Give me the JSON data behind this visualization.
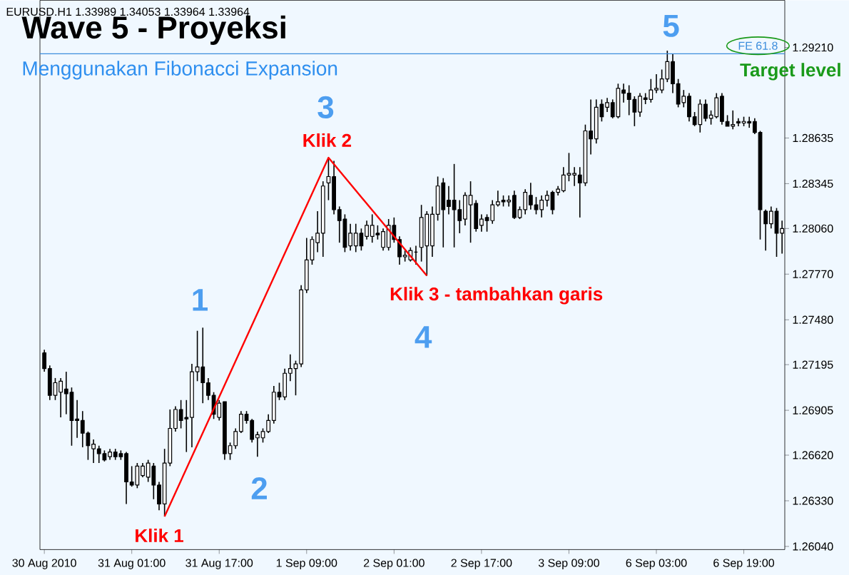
{
  "chart_data": {
    "type": "candlestick",
    "title": "Wave 5 - Proyeksi",
    "subtitle": "Menggunakan Fibonacci Expansion",
    "color": "#000000",
    "categories": [
      "30 Aug 2010",
      null,
      null,
      null,
      null,
      null,
      null,
      null,
      null,
      null,
      null,
      null,
      null,
      null,
      null,
      null,
      "31 Aug 01:00",
      null,
      null,
      null,
      null,
      null,
      null,
      null,
      null,
      null,
      null,
      null,
      null,
      null,
      null,
      null,
      "31 Aug 17:00",
      null,
      null,
      null,
      null,
      null,
      null,
      null,
      null,
      null,
      null,
      null,
      null,
      null,
      null,
      null,
      "1 Sep 09:00",
      null,
      null,
      null,
      null,
      null,
      null,
      null,
      null,
      null,
      null,
      null,
      null,
      null,
      null,
      null,
      "2 Sep 01:00",
      null,
      null,
      null,
      null,
      null,
      null,
      null,
      null,
      null,
      null,
      null,
      null,
      null,
      null,
      null,
      "2 Sep 17:00",
      null,
      null,
      null,
      null,
      null,
      null,
      null,
      null,
      null,
      null,
      null,
      null,
      null,
      null,
      null,
      "3 Sep 09:00",
      null,
      null,
      null,
      null,
      null,
      null,
      null,
      null,
      null,
      null,
      null,
      null,
      null,
      null,
      null,
      "6 Sep 03:00",
      null,
      null,
      null,
      null,
      null,
      null,
      null,
      null,
      null,
      null,
      null,
      null,
      null,
      null,
      null,
      "6 Sep 19:00",
      null,
      null,
      null,
      null,
      null,
      null,
      null
    ],
    "ohlc": [
      [
        1.2727,
        1.2729,
        1.2715,
        1.2717
      ],
      [
        1.2717,
        1.2719,
        1.2697,
        1.27
      ],
      [
        1.27,
        1.2711,
        1.2697,
        1.2708
      ],
      [
        1.2702,
        1.2711,
        1.2686,
        1.2709
      ],
      [
        1.2704,
        1.2715,
        1.2688,
        1.2701
      ],
      [
        1.2702,
        1.2705,
        1.2668,
        1.2684
      ],
      [
        1.2685,
        1.2697,
        1.2673,
        1.2684
      ],
      [
        1.2684,
        1.269,
        1.2667,
        1.2676
      ],
      [
        1.2676,
        1.2677,
        1.2659,
        1.2668
      ],
      [
        1.2666,
        1.2672,
        1.2657,
        1.2669
      ],
      [
        1.2666,
        1.2668,
        1.2657,
        1.2663
      ],
      [
        1.2663,
        1.2665,
        1.2658,
        1.2659
      ],
      [
        1.2661,
        1.2666,
        1.2659,
        1.2664
      ],
      [
        1.2664,
        1.2666,
        1.2659,
        1.2661
      ],
      [
        1.2663,
        1.2665,
        1.2659,
        1.2661
      ],
      [
        1.2663,
        1.2664,
        1.2631,
        1.2645
      ],
      [
        1.2645,
        1.2655,
        1.2642,
        1.2643
      ],
      [
        1.2643,
        1.2657,
        1.2641,
        1.2655
      ],
      [
        1.2649,
        1.2657,
        1.2648,
        1.2655
      ],
      [
        1.2648,
        1.2659,
        1.2645,
        1.2657
      ],
      [
        1.2655,
        1.2657,
        1.2634,
        1.2643
      ],
      [
        1.2643,
        1.2645,
        1.2627,
        1.2631
      ],
      [
        1.2631,
        1.2666,
        1.2623,
        1.2657
      ],
      [
        1.2657,
        1.2691,
        1.2655,
        1.2679
      ],
      [
        1.2679,
        1.2693,
        1.2677,
        1.2691
      ],
      [
        1.2691,
        1.2697,
        1.2679,
        1.2684
      ],
      [
        1.2686,
        1.2697,
        1.2664,
        1.2685
      ],
      [
        1.2686,
        1.272,
        1.2667,
        1.2715
      ],
      [
        1.2715,
        1.2741,
        1.2709,
        1.2718
      ],
      [
        1.2718,
        1.2743,
        1.2695,
        1.2708
      ],
      [
        1.2708,
        1.2711,
        1.2697,
        1.27
      ],
      [
        1.27,
        1.2702,
        1.2685,
        1.2688
      ],
      [
        1.2686,
        1.2697,
        1.2684,
        1.2695
      ],
      [
        1.2696,
        1.2696,
        1.2659,
        1.2663
      ],
      [
        1.2663,
        1.267,
        1.2659,
        1.2668
      ],
      [
        1.2668,
        1.2679,
        1.2666,
        1.2677
      ],
      [
        1.2677,
        1.269,
        1.2676,
        1.2688
      ],
      [
        1.2688,
        1.269,
        1.2682,
        1.2684
      ],
      [
        1.2684,
        1.2685,
        1.267,
        1.2672
      ],
      [
        1.2673,
        1.2677,
        1.2661,
        1.2675
      ],
      [
        1.2673,
        1.2679,
        1.267,
        1.2677
      ],
      [
        1.2677,
        1.2688,
        1.2676,
        1.2684
      ],
      [
        1.2684,
        1.2706,
        1.2682,
        1.2702
      ],
      [
        1.2702,
        1.2708,
        1.2697,
        1.2699
      ],
      [
        1.2699,
        1.2717,
        1.2697,
        1.2714
      ],
      [
        1.2714,
        1.2726,
        1.2709,
        1.2717
      ],
      [
        1.2717,
        1.2722,
        1.27,
        1.272
      ],
      [
        1.272,
        1.277,
        1.2718,
        1.2767
      ],
      [
        1.2767,
        1.28,
        1.2765,
        1.2786
      ],
      [
        1.2786,
        1.2801,
        1.2783,
        1.2799
      ],
      [
        1.2797,
        1.2817,
        1.2791,
        1.2803
      ],
      [
        1.2803,
        1.2836,
        1.2788,
        1.2833
      ],
      [
        1.2835,
        1.2851,
        1.2824,
        1.2839
      ],
      [
        1.2839,
        1.2849,
        1.2815,
        1.2818
      ],
      [
        1.2818,
        1.282,
        1.2797,
        1.2811
      ],
      [
        1.2812,
        1.2815,
        1.2791,
        1.2794
      ],
      [
        1.2795,
        1.2809,
        1.2792,
        1.2803
      ],
      [
        1.2795,
        1.2809,
        1.2791,
        1.2803
      ],
      [
        1.2803,
        1.2806,
        1.2792,
        1.2795
      ],
      [
        1.2801,
        1.2811,
        1.2799,
        1.2808
      ],
      [
        1.2801,
        1.2815,
        1.2797,
        1.2808
      ],
      [
        1.2803,
        1.2808,
        1.2799,
        1.2802
      ],
      [
        1.2794,
        1.2806,
        1.2792,
        1.2804
      ],
      [
        1.2794,
        1.2812,
        1.2792,
        1.2808
      ],
      [
        1.2808,
        1.2813,
        1.2797,
        1.2799
      ],
      [
        1.2799,
        1.2801,
        1.2783,
        1.2788
      ],
      [
        1.2788,
        1.2792,
        1.2785,
        1.2789
      ],
      [
        1.2786,
        1.2794,
        1.2785,
        1.2792
      ],
      [
        1.2791,
        1.2795,
        1.2783,
        1.2791
      ],
      [
        1.2794,
        1.2821,
        1.2785,
        1.2813
      ],
      [
        1.2795,
        1.2817,
        1.2776,
        1.2815
      ],
      [
        1.2795,
        1.282,
        1.2788,
        1.2815
      ],
      [
        1.2815,
        1.2839,
        1.2811,
        1.2833
      ],
      [
        1.2835,
        1.2838,
        1.2794,
        1.2818
      ],
      [
        1.2824,
        1.2833,
        1.2815,
        1.282
      ],
      [
        1.2824,
        1.2847,
        1.2794,
        1.2818
      ],
      [
        1.2818,
        1.2824,
        1.2803,
        1.2811
      ],
      [
        1.2812,
        1.2829,
        1.2808,
        1.2827
      ],
      [
        1.2821,
        1.2836,
        1.2797,
        1.2827
      ],
      [
        1.2822,
        1.2824,
        1.2804,
        1.2806
      ],
      [
        1.2808,
        1.2815,
        1.2804,
        1.2812
      ],
      [
        1.2813,
        1.2815,
        1.2804,
        1.2811
      ],
      [
        1.2811,
        1.2824,
        1.2809,
        1.2821
      ],
      [
        1.2821,
        1.283,
        1.282,
        1.2823
      ],
      [
        1.2824,
        1.2827,
        1.282,
        1.2823
      ],
      [
        1.2823,
        1.2827,
        1.282,
        1.2824
      ],
      [
        1.2827,
        1.283,
        1.2812,
        1.2813
      ],
      [
        1.2813,
        1.282,
        1.2812,
        1.2818
      ],
      [
        1.2818,
        1.2831,
        1.2815,
        1.2829
      ],
      [
        1.2827,
        1.2835,
        1.2818,
        1.2821
      ],
      [
        1.2821,
        1.2826,
        1.2815,
        1.2818
      ],
      [
        1.2818,
        1.2827,
        1.2813,
        1.2824
      ],
      [
        1.2824,
        1.283,
        1.282,
        1.2827
      ],
      [
        1.2829,
        1.283,
        1.2815,
        1.2818
      ],
      [
        1.2829,
        1.2833,
        1.2827,
        1.2831
      ],
      [
        1.283,
        1.2845,
        1.2829,
        1.284
      ],
      [
        1.284,
        1.2854,
        1.2836,
        1.2841
      ],
      [
        1.284,
        1.2845,
        1.2833,
        1.2841
      ],
      [
        1.284,
        1.2845,
        1.2813,
        1.2835
      ],
      [
        1.2835,
        1.2872,
        1.2833,
        1.2868
      ],
      [
        1.2868,
        1.2888,
        1.2853,
        1.2863
      ],
      [
        1.2863,
        1.2888,
        1.286,
        1.2883
      ],
      [
        1.2885,
        1.2888,
        1.2874,
        1.2877
      ],
      [
        1.2883,
        1.2889,
        1.288,
        1.2886
      ],
      [
        1.2886,
        1.2888,
        1.2876,
        1.2877
      ],
      [
        1.2877,
        1.2898,
        1.2876,
        1.2895
      ],
      [
        1.2894,
        1.2898,
        1.2886,
        1.2892
      ],
      [
        1.2892,
        1.2897,
        1.2878,
        1.2888
      ],
      [
        1.2888,
        1.289,
        1.2871,
        1.288
      ],
      [
        1.288,
        1.2892,
        1.2877,
        1.289
      ],
      [
        1.2889,
        1.2892,
        1.2885,
        1.2888
      ],
      [
        1.2888,
        1.2901,
        1.2886,
        1.2894
      ],
      [
        1.2894,
        1.2904,
        1.2892,
        1.2895
      ],
      [
        1.2894,
        1.2907,
        1.2892,
        1.2901
      ],
      [
        1.2901,
        1.2919,
        1.2899,
        1.2912
      ],
      [
        1.2912,
        1.2917,
        1.2892,
        1.2898
      ],
      [
        1.2898,
        1.2901,
        1.2883,
        1.2885
      ],
      [
        1.2886,
        1.2894,
        1.2883,
        1.289
      ],
      [
        1.289,
        1.2892,
        1.2874,
        1.2877
      ],
      [
        1.2877,
        1.288,
        1.2871,
        1.2872
      ],
      [
        1.2872,
        1.2888,
        1.2867,
        1.2885
      ],
      [
        1.2885,
        1.2888,
        1.2874,
        1.2876
      ],
      [
        1.2876,
        1.2881,
        1.2872,
        1.2878
      ],
      [
        1.2877,
        1.2892,
        1.2876,
        1.2889
      ],
      [
        1.289,
        1.2892,
        1.2872,
        1.2874
      ],
      [
        1.2874,
        1.2878,
        1.2871,
        1.2871
      ],
      [
        1.2871,
        1.2881,
        1.2869,
        1.2872
      ],
      [
        1.2874,
        1.2876,
        1.2871,
        1.2873
      ],
      [
        1.2873,
        1.2877,
        1.2871,
        1.2874
      ],
      [
        1.2874,
        1.2877,
        1.287,
        1.2873
      ],
      [
        1.2874,
        1.2876,
        1.2866,
        1.2867
      ],
      [
        1.2867,
        1.2868,
        1.2799,
        1.2818
      ],
      [
        1.2817,
        1.2818,
        1.2792,
        1.2809
      ],
      [
        1.2809,
        1.282,
        1.2806,
        1.2817
      ],
      [
        1.2817,
        1.2819,
        1.2788,
        1.2803
      ],
      [
        1.2803,
        1.2811,
        1.279,
        1.2806
      ]
    ],
    "series": [
      {
        "type": "line",
        "color": "#ff0000",
        "values": [
          null,
          null,
          null,
          null,
          null,
          null,
          null,
          null,
          null,
          null,
          null,
          null,
          null,
          null,
          null,
          null,
          null,
          null,
          null,
          null,
          null,
          null,
          1.2623,
          null,
          null,
          null,
          null,
          null,
          null,
          null,
          null,
          null,
          null,
          null,
          null,
          null,
          null,
          null,
          null,
          null,
          null,
          null,
          null,
          null,
          null,
          null,
          null,
          null,
          null,
          null,
          null,
          null,
          1.2851,
          null,
          null,
          null,
          null,
          null,
          null,
          null,
          null,
          null,
          null,
          null,
          null,
          null,
          null,
          null,
          null,
          null,
          1.2776,
          null,
          null,
          null,
          null,
          null,
          null,
          null,
          null,
          null,
          null,
          null,
          null,
          null,
          null,
          null,
          null,
          null,
          null,
          null,
          null,
          null,
          null,
          null,
          null,
          null,
          null,
          null,
          null,
          null,
          null,
          null,
          null,
          null,
          null,
          null,
          null,
          null,
          null,
          null,
          null,
          null,
          null,
          null,
          null,
          null,
          null,
          null,
          null,
          null,
          null,
          null,
          null,
          null,
          null,
          null,
          null,
          null,
          null,
          null,
          null,
          null,
          null,
          null,
          null,
          null
        ]
      }
    ],
    "ylim": [
      1.2602,
      1.2951
    ],
    "yticks": [
      {
        "value": 1.2921,
        "label": "1.29210"
      },
      {
        "value": 1.28635,
        "label": "1.28635"
      },
      {
        "value": 1.28345,
        "label": "1.28345"
      },
      {
        "value": 1.2806,
        "label": "1.28060"
      },
      {
        "value": 1.2777,
        "label": "1.27770"
      },
      {
        "value": 1.2748,
        "label": "1.27480"
      },
      {
        "value": 1.27195,
        "label": "1.27195"
      },
      {
        "value": 1.26905,
        "label": "1.26905"
      },
      {
        "value": 1.2662,
        "label": "1.26620"
      },
      {
        "value": 1.2633,
        "label": "1.26330"
      },
      {
        "value": 1.2604,
        "label": "1.26040"
      }
    ],
    "ref_lines": [
      {
        "axis": "y",
        "value": 1.2917,
        "label": "FE 61.8",
        "color": "#3c8ddc"
      }
    ],
    "annotations": [
      "EURUSD.H1  1.33989 1.34053 1.33964 1.33964",
      "1",
      "2",
      "3",
      "4",
      "5",
      "Klik 1",
      "Klik 2",
      "Klik 3 - tambahkan garis",
      "Target level"
    ]
  }
}
